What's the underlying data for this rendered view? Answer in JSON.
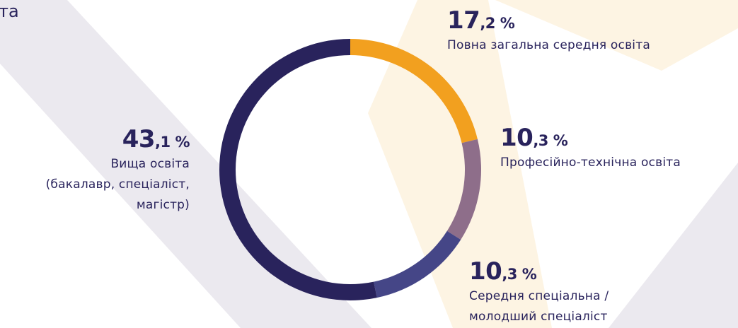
{
  "chart_data": {
    "type": "donut",
    "title": "та",
    "categories": [
      "Повна загальна середня освіта",
      "Професійно-технічна освіта",
      "Середня спеціальна /\nмолодший спеціаліст",
      "Вища освіта\n(бакалавр, спеціаліст,\nмагістр)"
    ],
    "values": [
      17.2,
      10.3,
      10.3,
      43.1
    ],
    "value_labels": [
      "17,2 %",
      "10,3 %",
      "10,3 %",
      "43,1 %"
    ],
    "colors": [
      "#f2a01f",
      "#8e6e8a",
      "#454687",
      "#29235c"
    ]
  }
}
